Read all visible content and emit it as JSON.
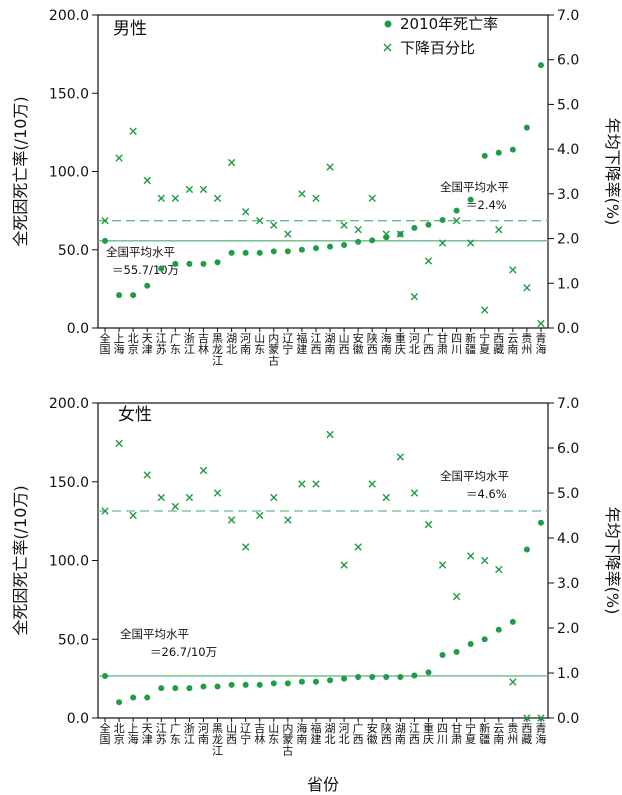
{
  "colors": {
    "point": "#1e9c46",
    "cross": "#1e9c46",
    "line": "#6db88a",
    "axis": "#111111"
  },
  "legend": {
    "death_rate": "2010年死亡率",
    "decline": "下降百分比"
  },
  "chart_data": [
    {
      "type": "scatter",
      "title": "男性",
      "ylabel_left": "全死因死亡率(/10万)",
      "ylabel_right": "年均下降率(%)",
      "ylim_left": [
        0,
        200
      ],
      "ylim_right": [
        0,
        7
      ],
      "yticks_left": [
        "0.0",
        "50.0",
        "100.0",
        "150.0",
        "200.0"
      ],
      "yticks_right": [
        "0.0",
        "1.0",
        "2.0",
        "3.0",
        "4.0",
        "5.0",
        "6.0",
        "7.0"
      ],
      "categories": [
        "全国",
        "上海",
        "北京",
        "天津",
        "江苏",
        "广东",
        "浙江",
        "吉林",
        "黑龙江",
        "湖北",
        "河南",
        "山东",
        "内蒙古",
        "辽宁",
        "福建",
        "江西",
        "湖南",
        "山西",
        "安徽",
        "陕西",
        "海南",
        "重庆",
        "河北",
        "广西",
        "甘肃",
        "四川",
        "新疆",
        "宁夏",
        "西藏",
        "云南",
        "贵州",
        "青海"
      ],
      "series": [
        {
          "name": "2010年死亡率",
          "axis": "left",
          "marker": "dot",
          "values": [
            55.7,
            21,
            21,
            27,
            38,
            41,
            41,
            41,
            42,
            48,
            48,
            48,
            49,
            49,
            50,
            51,
            52,
            53,
            55,
            56,
            58,
            60,
            64,
            66,
            69,
            75,
            82,
            110,
            112,
            114,
            128,
            168
          ]
        },
        {
          "name": "下降百分比",
          "axis": "right",
          "marker": "cross",
          "values": [
            2.4,
            3.8,
            4.4,
            3.3,
            2.9,
            2.9,
            3.1,
            3.1,
            2.9,
            3.7,
            2.6,
            2.4,
            2.3,
            2.1,
            3.0,
            2.9,
            3.6,
            2.3,
            2.2,
            2.9,
            2.1,
            2.1,
            0.7,
            1.5,
            1.9,
            2.4,
            1.9,
            0.4,
            2.2,
            1.3,
            0.9,
            0.1
          ]
        }
      ],
      "annotations": [
        {
          "text": "全国平均水平",
          "text2": "＝55.7/10万",
          "axis": "left",
          "value": 55.7
        },
        {
          "text": "全国平均水平",
          "text2": "＝2.4%",
          "axis": "right",
          "value": 2.4
        }
      ]
    },
    {
      "type": "scatter",
      "title": "女性",
      "xlabel": "省份",
      "ylabel_left": "全死因死亡率(/10万)",
      "ylabel_right": "年均下降率(%)",
      "ylim_left": [
        0,
        200
      ],
      "ylim_right": [
        0,
        7
      ],
      "yticks_left": [
        "0.0",
        "50.0",
        "100.0",
        "150.0",
        "200.0"
      ],
      "yticks_right": [
        "0.0",
        "1.0",
        "2.0",
        "3.0",
        "4.0",
        "5.0",
        "6.0",
        "7.0"
      ],
      "categories": [
        "全国",
        "北京",
        "上海",
        "天津",
        "江苏",
        "广东",
        "浙江",
        "河南",
        "黑龙江",
        "山西",
        "辽宁",
        "吉林",
        "山东",
        "内蒙古",
        "海南",
        "福建",
        "湖北",
        "河北",
        "广西",
        "安徽",
        "陕西",
        "湖南",
        "江西",
        "重庆",
        "四川",
        "甘肃",
        "宁夏",
        "新疆",
        "云南",
        "贵州",
        "西藏",
        "青海"
      ],
      "series": [
        {
          "name": "2010年死亡率",
          "axis": "left",
          "marker": "dot",
          "values": [
            26.7,
            10,
            13,
            13,
            19,
            19,
            19,
            20,
            20,
            21,
            21,
            21,
            22,
            22,
            23,
            23,
            24,
            25,
            26,
            26,
            26,
            26,
            27,
            29,
            40,
            42,
            47,
            50,
            56,
            61,
            107,
            124
          ]
        },
        {
          "name": "下降百分比",
          "axis": "right",
          "marker": "cross",
          "values": [
            4.6,
            6.1,
            4.5,
            5.4,
            4.9,
            4.7,
            4.9,
            5.5,
            5.0,
            4.4,
            3.8,
            4.5,
            4.9,
            4.4,
            5.2,
            5.2,
            6.3,
            3.4,
            3.8,
            5.2,
            4.9,
            5.8,
            5.0,
            4.3,
            3.4,
            2.7,
            3.6,
            3.5,
            3.3,
            0.8,
            0,
            0
          ]
        }
      ],
      "annotations": [
        {
          "text": "全国平均水平",
          "text2": "＝26.7/10万",
          "axis": "left",
          "value": 26.7
        },
        {
          "text": "全国平均水平",
          "text2": "＝4.6%",
          "axis": "right",
          "value": 4.6
        }
      ]
    }
  ]
}
